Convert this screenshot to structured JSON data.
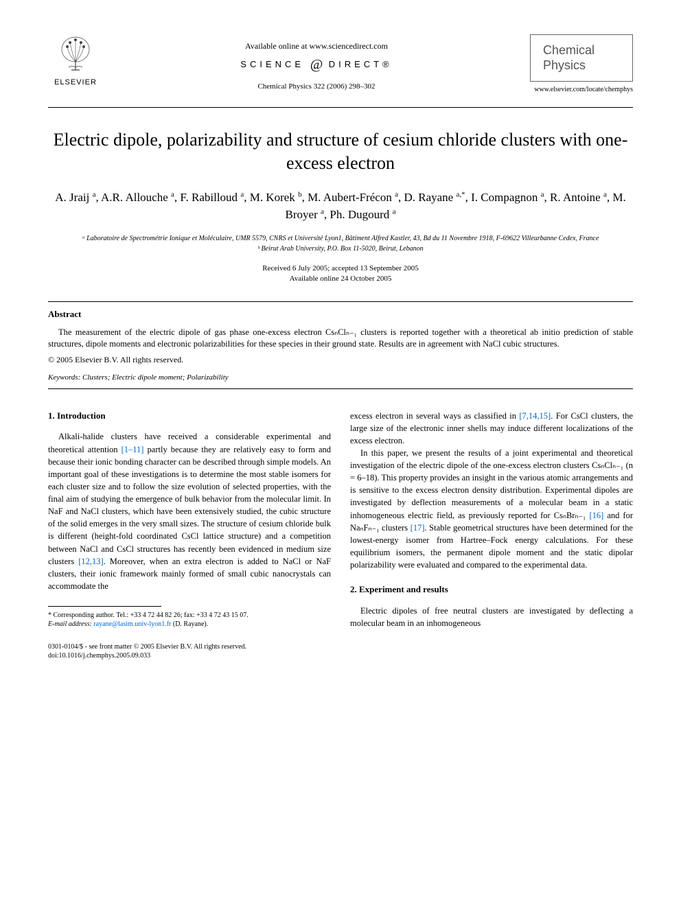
{
  "header": {
    "elsevier_label": "ELSEVIER",
    "available_online": "Available online at www.sciencedirect.com",
    "science_direct_prefix": "SCIENCE",
    "science_direct_at": "@",
    "science_direct_suffix": "DIRECT®",
    "journal_ref": "Chemical Physics 322 (2006) 298–302",
    "journal_name_line1": "Chemical",
    "journal_name_line2": "Physics",
    "journal_url": "www.elsevier.com/locate/chemphys"
  },
  "title": "Electric dipole, polarizability and structure of cesium chloride clusters with one-excess electron",
  "authors_html": "A. Jraij <sup>a</sup>, A.R. Allouche <sup>a</sup>, F. Rabilloud <sup>a</sup>, M. Korek <sup>b</sup>, M. Aubert-Frécon <sup>a</sup>, D. Rayane <sup>a,*</sup>, I. Compagnon <sup>a</sup>, R. Antoine <sup>a</sup>, M. Broyer <sup>a</sup>, Ph. Dugourd <sup>a</sup>",
  "affiliations": {
    "a": "ᵃ Laboratoire de Spectrométrie Ionique et Moléculaire, UMR 5579, CNRS et Université Lyon1, Bâtiment Alfred Kastler, 43, Bd du 11 Novembre 1918, F-69622 Villeurbanne Cedex, France",
    "b": "ᵇ Beirut Arab University, P.O. Box 11-5020, Beirut, Lebanon"
  },
  "dates": {
    "received": "Received 6 July 2005; accepted 13 September 2005",
    "online": "Available online 24 October 2005"
  },
  "abstract": {
    "label": "Abstract",
    "text": "The measurement of the electric dipole of gas phase one-excess electron CsₙClₙ₋₁ clusters is reported together with a theoretical ab initio prediction of stable structures, dipole moments and electronic polarizabilities for these species in their ground state. Results are in agreement with NaCl cubic structures.",
    "copyright": "© 2005 Elsevier B.V. All rights reserved."
  },
  "keywords": {
    "label": "Keywords:",
    "text": " Clusters; Electric dipole moment; Polarizability"
  },
  "sections": {
    "intro_heading": "1. Introduction",
    "intro_p1_before_ref1": "Alkali-halide clusters have received a considerable experimental and theoretical attention ",
    "ref_1_11": "[1–11]",
    "intro_p1_mid": " partly because they are relatively easy to form and because their ionic bonding character can be described through simple models. An important goal of these investigations is to determine the most stable isomers for each cluster size and to follow the size evolution of selected properties, with the final aim of studying the emergence of bulk behavior from the molecular limit. In NaF and NaCl clusters, which have been extensively studied, the cubic structure of the solid emerges in the very small sizes. The structure of cesium chloride bulk is different (height-fold coordinated CsCl lattice structure) and a competition between NaCl and CsCl structures has recently been evidenced in medium size clusters ",
    "ref_12_13": "[12,13]",
    "intro_p1_after": ". Moreover, when an extra electron is added to NaCl or NaF clusters, their ionic framework mainly formed of small cubic nanocrystals can accommodate the ",
    "col2_p1_before": "excess electron in several ways as classified in ",
    "ref_7_14_15": "[7,14,15]",
    "col2_p1_after": ". For CsCl clusters, the large size of the electronic inner shells may induce different localizations of the excess electron.",
    "col2_p2_before": "In this paper, we present the results of a joint experimental and theoretical investigation of the electric dipole of the one-excess electron clusters CsₙClₙ₋₁ (n = 6–18). This property provides an insight in the various atomic arrangements and is sensitive to the excess electron density distribution. Experimental dipoles are investigated by deflection measurements of a molecular beam in a static inhomogeneous electric field, as previously reported for CsₙBrₙ₋₁ ",
    "ref_16": "[16]",
    "col2_p2_mid": " and for NaₙFₙ₋₁ clusters ",
    "ref_17": "[17]",
    "col2_p2_after": ". Stable geometrical structures have been determined for the lowest-energy isomer from Hartree–Fock energy calculations. For these equilibrium isomers, the permanent dipole moment and the static dipolar polarizability were evaluated and compared to the experimental data.",
    "exp_heading": "2. Experiment and results",
    "exp_p1": "Electric dipoles of free neutral clusters are investigated by deflecting a molecular beam in an inhomogeneous"
  },
  "footnote": {
    "corr": "* Corresponding author. Tel.: +33 4 72 44 82 26; fax: +33 4 72 43 15 07.",
    "email_label": "E-mail address:",
    "email": " rayane@lasim.univ-lyon1.fr",
    "email_who": " (D. Rayane)."
  },
  "footer": {
    "issn": "0301-0104/$ - see front matter © 2005 Elsevier B.V. All rights reserved.",
    "doi": "doi:10.1016/j.chemphys.2005.09.033"
  },
  "colors": {
    "link": "#0066cc",
    "text": "#000000",
    "bg": "#ffffff"
  }
}
